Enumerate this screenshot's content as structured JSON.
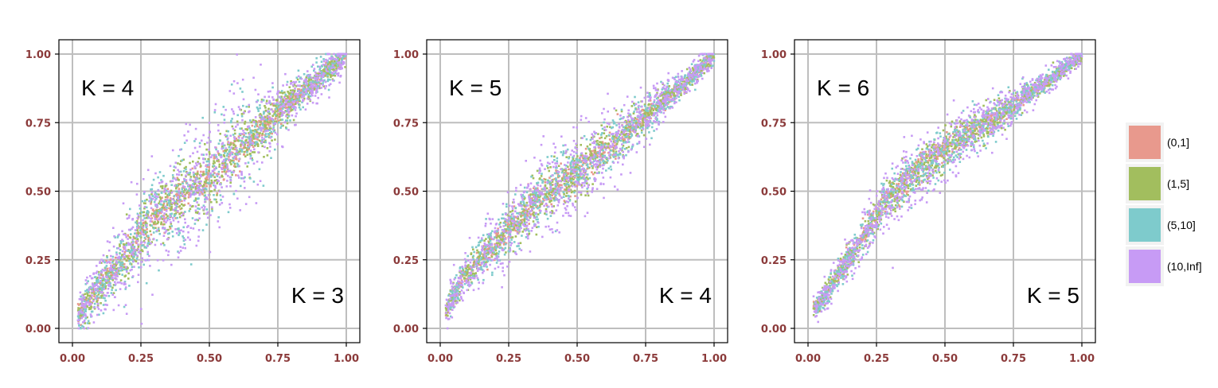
{
  "chart_data": [
    {
      "type": "scatter",
      "top_label": "K = 4",
      "bottom_label": "K = 3",
      "xlim": [
        0,
        1
      ],
      "ylim": [
        0,
        1
      ],
      "ticks": [
        "0.00",
        "0.25",
        "0.50",
        "0.75",
        "1.00"
      ],
      "tick_values": [
        0,
        0.25,
        0.5,
        0.75,
        1
      ],
      "grid": true,
      "trend": [
        [
          0.02,
          0.05
        ],
        [
          0.1,
          0.15
        ],
        [
          0.2,
          0.27
        ],
        [
          0.3,
          0.4
        ],
        [
          0.4,
          0.48
        ],
        [
          0.5,
          0.55
        ],
        [
          0.6,
          0.65
        ],
        [
          0.7,
          0.74
        ],
        [
          0.8,
          0.83
        ],
        [
          0.9,
          0.91
        ],
        [
          1.0,
          1.0
        ]
      ],
      "band_width": [
        0.035,
        0.06,
        0.09,
        0.11
      ]
    },
    {
      "type": "scatter",
      "top_label": "K = 5",
      "bottom_label": "K = 4",
      "xlim": [
        0,
        1
      ],
      "ylim": [
        0,
        1
      ],
      "ticks": [
        "0.00",
        "0.25",
        "0.50",
        "0.75",
        "1.00"
      ],
      "tick_values": [
        0,
        0.25,
        0.5,
        0.75,
        1
      ],
      "grid": true,
      "trend": [
        [
          0.02,
          0.06
        ],
        [
          0.08,
          0.18
        ],
        [
          0.15,
          0.26
        ],
        [
          0.25,
          0.36
        ],
        [
          0.35,
          0.46
        ],
        [
          0.5,
          0.57
        ],
        [
          0.6,
          0.65
        ],
        [
          0.7,
          0.73
        ],
        [
          0.8,
          0.82
        ],
        [
          0.9,
          0.9
        ],
        [
          1.0,
          1.0
        ]
      ],
      "band_width": [
        0.03,
        0.045,
        0.06,
        0.08
      ]
    },
    {
      "type": "scatter",
      "top_label": "K = 6",
      "bottom_label": "K = 5",
      "xlim": [
        0,
        1
      ],
      "ylim": [
        0,
        1
      ],
      "ticks": [
        "0.00",
        "0.25",
        "0.50",
        "0.75",
        "1.00"
      ],
      "tick_values": [
        0,
        0.25,
        0.5,
        0.75,
        1
      ],
      "grid": true,
      "trend": [
        [
          0.04,
          0.08
        ],
        [
          0.1,
          0.18
        ],
        [
          0.2,
          0.33
        ],
        [
          0.27,
          0.45
        ],
        [
          0.35,
          0.53
        ],
        [
          0.45,
          0.61
        ],
        [
          0.5,
          0.65
        ],
        [
          0.6,
          0.72
        ],
        [
          0.7,
          0.78
        ],
        [
          0.8,
          0.85
        ],
        [
          0.9,
          0.92
        ],
        [
          1.0,
          1.0
        ]
      ],
      "band_width": [
        0.025,
        0.035,
        0.045,
        0.06
      ]
    }
  ],
  "legend": {
    "items": [
      {
        "label": "(0,1]",
        "color": "#E8998D"
      },
      {
        "label": "(1,5]",
        "color": "#A2BE5E"
      },
      {
        "label": "(5,10]",
        "color": "#7ECBCC"
      },
      {
        "label": "(10,Inf]",
        "color": "#C79BF5"
      }
    ]
  },
  "colors": {
    "tick_label": "#8B3A3A",
    "grid": "#BEBEBE",
    "axis": "#000000"
  }
}
